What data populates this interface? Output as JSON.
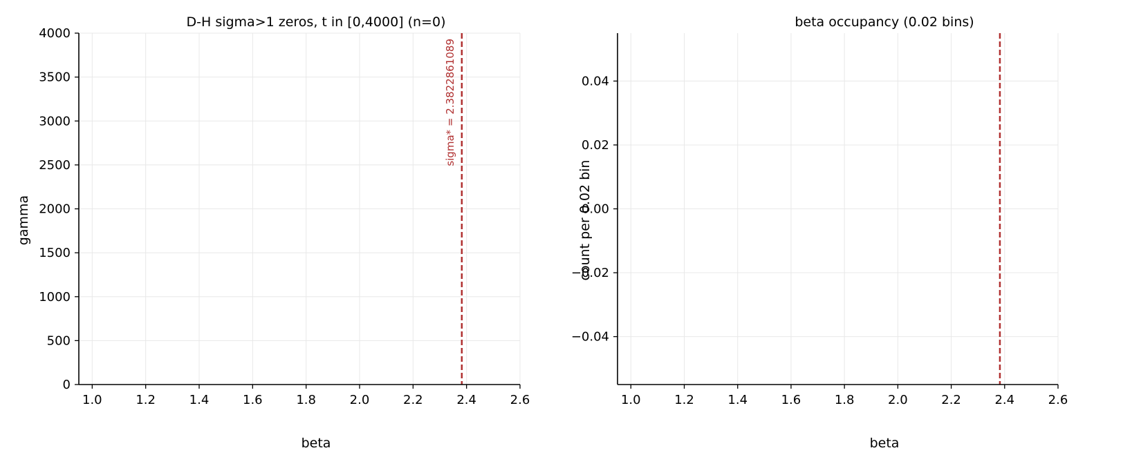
{
  "colors": {
    "grid": "#e8e8e8",
    "axis": "#000000",
    "marker_line": "#b03030"
  },
  "chart_data": [
    {
      "type": "scatter",
      "title": "D-H sigma>1 zeros, t in [0,4000] (n=0)",
      "xlabel": "beta",
      "ylabel": "gamma",
      "xlim": [
        0.95,
        2.6
      ],
      "ylim": [
        0,
        4000
      ],
      "xticks": [
        1.0,
        1.2,
        1.4,
        1.6,
        1.8,
        2.0,
        2.2,
        2.4,
        2.6
      ],
      "xtick_labels": [
        "1.0",
        "1.2",
        "1.4",
        "1.6",
        "1.8",
        "2.0",
        "2.2",
        "2.4",
        "2.6"
      ],
      "yticks": [
        0,
        500,
        1000,
        1500,
        2000,
        2500,
        3000,
        3500,
        4000
      ],
      "ytick_labels": [
        "0",
        "500",
        "1000",
        "1500",
        "2000",
        "2500",
        "3000",
        "3500",
        "4000"
      ],
      "grid": true,
      "points": [],
      "vline": {
        "x": 2.3822861089,
        "label": "sigma* = 2.3822861089"
      }
    },
    {
      "type": "bar",
      "title": "beta occupancy (0.02 bins)",
      "xlabel": "beta",
      "ylabel": "count per 0.02 bin",
      "xlim": [
        0.95,
        2.6
      ],
      "ylim": [
        -0.055,
        0.055
      ],
      "xticks": [
        1.0,
        1.2,
        1.4,
        1.6,
        1.8,
        2.0,
        2.2,
        2.4,
        2.6
      ],
      "xtick_labels": [
        "1.0",
        "1.2",
        "1.4",
        "1.6",
        "1.8",
        "2.0",
        "2.2",
        "2.4",
        "2.6"
      ],
      "yticks": [
        -0.04,
        -0.02,
        0.0,
        0.02,
        0.04
      ],
      "ytick_labels": [
        "−0.04",
        "−0.02",
        "0.00",
        "0.02",
        "0.04"
      ],
      "grid": true,
      "bin_width": 0.02,
      "values": [],
      "vline": {
        "x": 2.3822861089
      }
    }
  ]
}
